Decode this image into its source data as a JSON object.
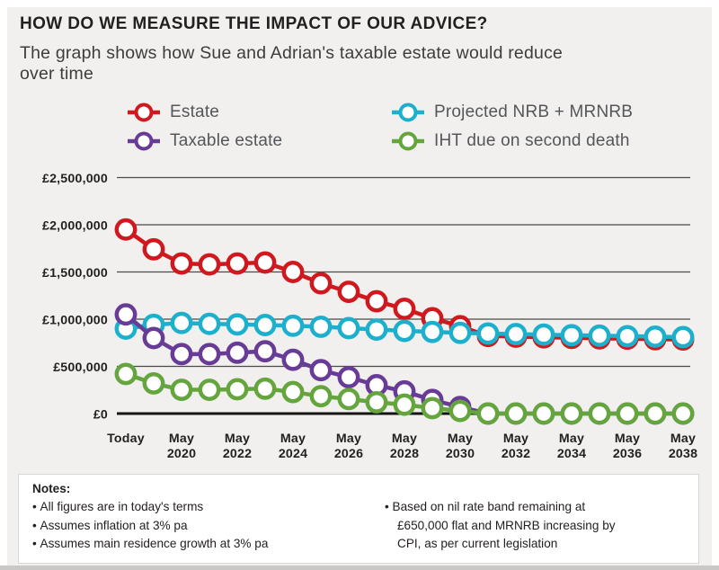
{
  "page": {
    "title": "HOW DO WE MEASURE THE IMPACT OF OUR ADVICE?",
    "subtitle_lines": [
      "The graph shows how Sue and Adrian's taxable estate would reduce",
      "over time"
    ]
  },
  "colors": {
    "estate": "#d0191f",
    "taxable": "#683c96",
    "nrb": "#1cb0cd",
    "iht": "#64a53e",
    "background": "#f1f0ee",
    "grid": "#4a4a48",
    "zero_axis": "#141414",
    "axis_text": "#242021",
    "legend_text": "#55565a"
  },
  "legend": [
    {
      "series": "estate",
      "label": "Estate"
    },
    {
      "series": "nrb",
      "label": "Projected NRB + MRNRB"
    },
    {
      "series": "taxable",
      "label": "Taxable estate"
    },
    {
      "series": "iht",
      "label": "IHT due on second death"
    }
  ],
  "chart_data": {
    "type": "line",
    "title": "HOW DO WE MEASURE THE IMPACT OF OUR ADVICE?",
    "xlabel": "",
    "ylabel": "",
    "ylim": [
      0,
      2500000
    ],
    "grid": true,
    "legend_position": "top",
    "x_points": 21,
    "x_tick_every": 2,
    "x_ticks": [
      "Today",
      "May 2020",
      "May 2022",
      "May 2024",
      "May 2026",
      "May 2028",
      "May 2030",
      "May 2032",
      "May 2034",
      "May 2036",
      "May 2038"
    ],
    "y_ticks": [
      {
        "value": 2500000,
        "label": "£2,500,000"
      },
      {
        "value": 2000000,
        "label": "£2,000,000"
      },
      {
        "value": 1500000,
        "label": "£1,500,000"
      },
      {
        "value": 1000000,
        "label": "£1,000,000"
      },
      {
        "value": 500000,
        "label": "£500,000"
      },
      {
        "value": 0,
        "label": "£0"
      }
    ],
    "series": [
      {
        "id": "estate",
        "name": "Estate",
        "values": [
          1950000,
          1740000,
          1590000,
          1580000,
          1590000,
          1600000,
          1500000,
          1380000,
          1290000,
          1190000,
          1110000,
          1010000,
          925000,
          822000,
          815000,
          808000,
          802000,
          797000,
          793000,
          788000,
          785000
        ]
      },
      {
        "id": "nrb",
        "name": "Projected NRB + MRNRB",
        "values": [
          900000,
          940000,
          960000,
          950000,
          945000,
          938000,
          930000,
          920000,
          905000,
          890000,
          876000,
          865000,
          855000,
          848000,
          842000,
          836000,
          830000,
          825000,
          820000,
          815000,
          810000
        ]
      },
      {
        "id": "taxable",
        "name": "Taxable estate",
        "values": [
          1050000,
          800000,
          630000,
          630000,
          645000,
          660000,
          570000,
          460000,
          385000,
          300000,
          235000,
          145000,
          70000,
          0,
          0,
          0,
          0,
          0,
          0,
          0,
          0
        ]
      },
      {
        "id": "iht",
        "name": "IHT due on second death",
        "values": [
          420000,
          320000,
          252000,
          252000,
          258000,
          264000,
          228000,
          184000,
          154000,
          120000,
          94000,
          58000,
          28000,
          0,
          0,
          0,
          0,
          0,
          0,
          0,
          0
        ]
      }
    ]
  },
  "notes": {
    "title": "Notes:",
    "col1": [
      "All figures are in today's terms",
      "Assumes inflation at 3% pa",
      "Assumes main residence growth at 3% pa"
    ],
    "col2": [
      "Based on nil rate band remaining at £650,000 flat and MRNRB increasing by CPI, as per current legislation"
    ]
  }
}
